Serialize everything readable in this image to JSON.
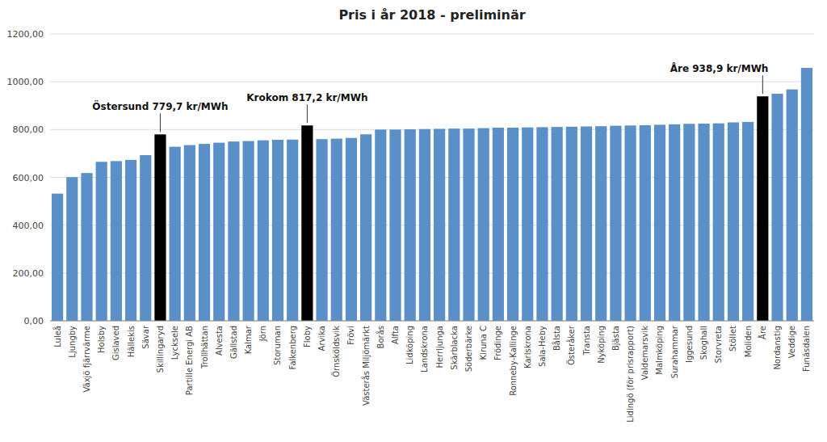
{
  "chart_data": {
    "type": "bar",
    "title": "Pris i år 2018 - preliminär",
    "categories": [
      "Luleå",
      "Ljungby",
      "Växjö fjärrvärme",
      "Holsby",
      "Gislaved",
      "Hällekis",
      "Sävar",
      "Skillingaryd",
      "Lycksele",
      "Partille Energi AB",
      "Trollhättan",
      "Alvesta",
      "Gällstad",
      "Kalmar",
      "Jörn",
      "Storuman",
      "Falkenberg",
      "Floby",
      "Arvika",
      "Örnsköldsvik",
      "Frövi",
      "Västerås Miljömärkt",
      "Borås",
      "Alfta",
      "Lidköping",
      "Landskrona",
      "Herrljunga",
      "Skärblacka",
      "Söderbärke",
      "Kiruna C",
      "Frödinge",
      "Ronneby-Kallinge",
      "Karlskrona",
      "Sala-Heby",
      "Bålsta",
      "Österåker",
      "Transta",
      "Nyköping",
      "Bjästa",
      "Lidingö (för prisrapport)",
      "Valdemarsvik",
      "Malmköping",
      "Surahammar",
      "Iggesund",
      "Skoghall",
      "Storvreta",
      "Stöllet",
      "Moliden",
      "Åre",
      "Nordanstig",
      "Veddige",
      "Funäsdalen"
    ],
    "values": [
      532,
      601,
      618,
      665,
      668,
      673,
      693,
      779.7,
      728,
      735,
      740,
      745,
      750,
      752,
      755,
      757,
      758,
      817.2,
      760,
      762,
      765,
      780,
      800,
      800,
      801,
      802,
      803,
      804,
      804,
      806,
      808,
      808,
      809,
      810,
      811,
      812,
      813,
      814,
      816,
      817,
      818,
      820,
      822,
      824,
      825,
      826,
      830,
      832,
      938.9,
      950,
      968,
      1058
    ],
    "colors": [
      "#5b8fc7",
      "#5b8fc7",
      "#5b8fc7",
      "#5b8fc7",
      "#5b8fc7",
      "#5b8fc7",
      "#5b8fc7",
      "#000000",
      "#5b8fc7",
      "#5b8fc7",
      "#5b8fc7",
      "#5b8fc7",
      "#5b8fc7",
      "#5b8fc7",
      "#5b8fc7",
      "#5b8fc7",
      "#5b8fc7",
      "#000000",
      "#5b8fc7",
      "#5b8fc7",
      "#5b8fc7",
      "#5b8fc7",
      "#5b8fc7",
      "#5b8fc7",
      "#5b8fc7",
      "#5b8fc7",
      "#5b8fc7",
      "#5b8fc7",
      "#5b8fc7",
      "#5b8fc7",
      "#5b8fc7",
      "#5b8fc7",
      "#5b8fc7",
      "#5b8fc7",
      "#5b8fc7",
      "#5b8fc7",
      "#5b8fc7",
      "#5b8fc7",
      "#5b8fc7",
      "#5b8fc7",
      "#5b8fc7",
      "#5b8fc7",
      "#5b8fc7",
      "#5b8fc7",
      "#5b8fc7",
      "#5b8fc7",
      "#5b8fc7",
      "#5b8fc7",
      "#000000",
      "#5b8fc7",
      "#5b8fc7",
      "#5b8fc7"
    ],
    "ylim": [
      0,
      1200
    ],
    "yticks": [
      {
        "value": 0,
        "label": "0,00"
      },
      {
        "value": 200,
        "label": "200,00"
      },
      {
        "value": 400,
        "label": "400,00"
      },
      {
        "value": 600,
        "label": "600,00"
      },
      {
        "value": 800,
        "label": "800,00"
      },
      {
        "value": 1000,
        "label": "1000,00"
      },
      {
        "value": 1200,
        "label": "1200,00"
      }
    ],
    "grid": true,
    "annotations": [
      {
        "text": "Östersund 779,7 kr/MWh",
        "category": "Skillingaryd"
      },
      {
        "text": "Krokom 817,2 kr/MWh",
        "category": "Floby"
      },
      {
        "text": "Åre 938,9 kr/MWh",
        "category": "Åre"
      }
    ]
  }
}
